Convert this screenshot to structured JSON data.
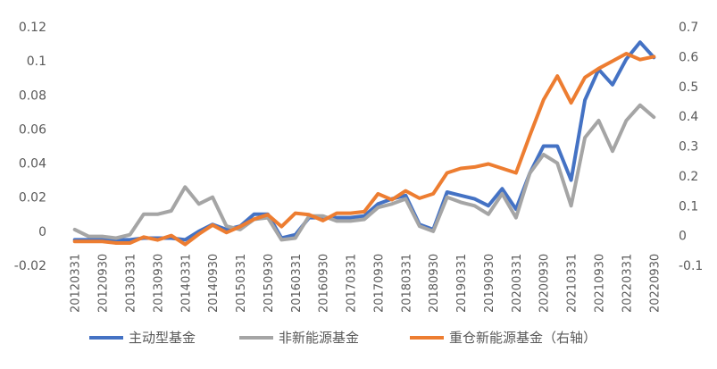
{
  "chart_data": {
    "type": "line",
    "categories": [
      "20120331",
      "20120630",
      "20120930",
      "20121231",
      "20130331",
      "20130630",
      "20130930",
      "20131231",
      "20140331",
      "20140630",
      "20140930",
      "20141231",
      "20150331",
      "20150630",
      "20150930",
      "20151231",
      "20160331",
      "20160630",
      "20160930",
      "20161231",
      "20170331",
      "20170630",
      "20170930",
      "20171231",
      "20180331",
      "20180630",
      "20180930",
      "20181231",
      "20190331",
      "20190630",
      "20190930",
      "20191231",
      "20200331",
      "20200630",
      "20200930",
      "20201231",
      "20210331",
      "20210630",
      "20210930",
      "20211231",
      "20220331",
      "20220630",
      "20220930"
    ],
    "x_tick_labels": [
      "20120331",
      "20120930",
      "20130331",
      "20130930",
      "20140331",
      "20140930",
      "20150331",
      "20150930",
      "20160331",
      "20160930",
      "20170331",
      "20170930",
      "20180331",
      "20180930",
      "20190331",
      "20190930",
      "20200331",
      "20200930",
      "20210331",
      "20210930",
      "20220331",
      "20220930"
    ],
    "y_left": {
      "lim": [
        -0.02,
        0.12
      ],
      "ticks": [
        "-0.02",
        "0",
        "0.02",
        "0.04",
        "0.06",
        "0.08",
        "0.1",
        "0.12"
      ]
    },
    "y_right": {
      "lim": [
        -0.1,
        0.7
      ],
      "ticks": [
        "-0.1",
        "0",
        "0.1",
        "0.2",
        "0.3",
        "0.4",
        "0.5",
        "0.6",
        "0.7"
      ]
    },
    "grid": false,
    "legend_position": "bottom",
    "series": [
      {
        "name": "主动型基金",
        "axis": "left",
        "color": "#4472C4",
        "values": [
          -0.005,
          -0.005,
          -0.005,
          -0.005,
          -0.005,
          -0.004,
          -0.004,
          -0.004,
          -0.005,
          0.0,
          0.004,
          0.001,
          0.003,
          0.01,
          0.01,
          -0.004,
          -0.002,
          0.008,
          0.008,
          0.008,
          0.008,
          0.009,
          0.016,
          0.019,
          0.021,
          0.004,
          0.001,
          0.023,
          0.021,
          0.019,
          0.015,
          0.025,
          0.013,
          0.034,
          0.05,
          0.05,
          0.03,
          0.077,
          0.095,
          0.086,
          0.101,
          0.111,
          0.102
        ]
      },
      {
        "name": "非新能源基金",
        "axis": "left",
        "color": "#A5A5A5",
        "values": [
          0.001,
          -0.003,
          -0.003,
          -0.004,
          -0.002,
          0.01,
          0.01,
          0.012,
          0.026,
          0.016,
          0.02,
          0.003,
          0.001,
          0.007,
          0.008,
          -0.005,
          -0.004,
          0.009,
          0.009,
          0.006,
          0.006,
          0.007,
          0.014,
          0.016,
          0.019,
          0.003,
          0.0,
          0.02,
          0.017,
          0.015,
          0.01,
          0.022,
          0.008,
          0.034,
          0.045,
          0.04,
          0.015,
          0.055,
          0.065,
          0.047,
          0.065,
          0.074,
          0.067
        ]
      },
      {
        "name": "重仓新能源基金（右轴）",
        "axis": "right",
        "color": "#ED7D31",
        "values": [
          -0.02,
          -0.02,
          -0.02,
          -0.025,
          -0.025,
          -0.005,
          -0.015,
          0.0,
          -0.03,
          0.005,
          0.035,
          0.01,
          0.03,
          0.055,
          0.07,
          0.03,
          0.075,
          0.07,
          0.05,
          0.075,
          0.075,
          0.08,
          0.14,
          0.12,
          0.15,
          0.125,
          0.14,
          0.21,
          0.225,
          0.23,
          0.24,
          0.225,
          0.21,
          0.335,
          0.455,
          0.535,
          0.445,
          0.53,
          0.56,
          0.585,
          0.61,
          0.59,
          0.6
        ]
      }
    ]
  }
}
